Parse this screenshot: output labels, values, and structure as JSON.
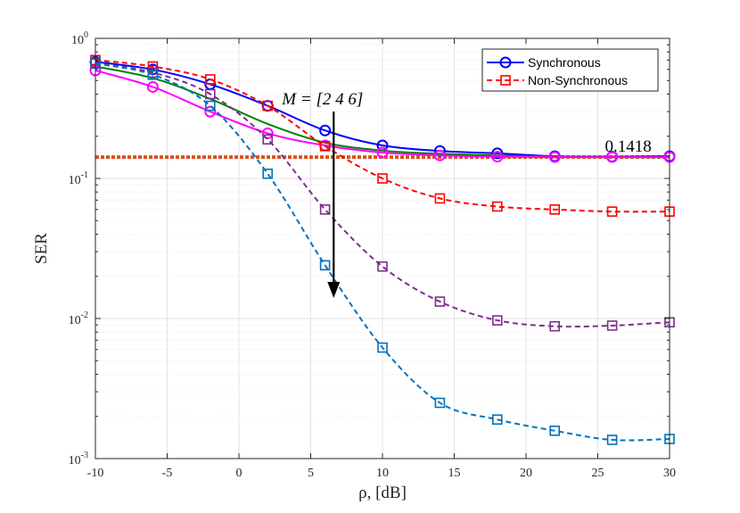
{
  "chart_data": {
    "type": "line",
    "title": "",
    "xlabel": "ρ, [dB]",
    "ylabel": "SER",
    "xlim": [
      -10,
      30
    ],
    "ylim": [
      0.001,
      1
    ],
    "yscale": "log",
    "grid": true,
    "xticks": [
      -10,
      -5,
      0,
      5,
      10,
      15,
      20,
      25,
      30
    ],
    "xtick_labels": [
      "-10",
      "-5",
      "0",
      "5",
      "10",
      "15",
      "20",
      "25",
      "30"
    ],
    "yticks": [
      {
        "value": 1,
        "base": "10",
        "exp": "0"
      },
      {
        "value": 0.1,
        "base": "10",
        "exp": "-1"
      },
      {
        "value": 0.01,
        "base": "10",
        "exp": "-2"
      },
      {
        "value": 0.001,
        "base": "10",
        "exp": "-3"
      }
    ],
    "legend": {
      "position": "top-right",
      "entries": [
        {
          "label": "Synchronous",
          "color": "#0000ff",
          "style": "solid",
          "marker": "circle"
        },
        {
          "label": "Non-Synchronous",
          "color": "#ff0000",
          "style": "dashed",
          "marker": "square"
        }
      ]
    },
    "annotations": {
      "m_label": "M = [2 4 6]",
      "ref_label": "0.1418",
      "ref_value": 0.1418,
      "ref_color": "#d95319"
    },
    "series": [
      {
        "name": "Synchronous M=2",
        "color": "#0000ff",
        "style": "solid",
        "marker": "circle",
        "x": [
          -10,
          -6,
          -2,
          2,
          6,
          10,
          14,
          18,
          22,
          26,
          30
        ],
        "y": [
          0.68,
          0.6,
          0.47,
          0.33,
          0.22,
          0.172,
          0.157,
          0.151,
          0.144,
          0.143,
          0.144
        ]
      },
      {
        "name": "Synchronous M=4",
        "color": "#008000",
        "style": "solid",
        "marker": "none",
        "x": [
          -10,
          -6,
          -2,
          2,
          6,
          10,
          14,
          18,
          22,
          26,
          30
        ],
        "y": [
          0.63,
          0.52,
          0.37,
          0.245,
          0.18,
          0.158,
          0.15,
          0.146,
          0.143,
          0.142,
          0.142
        ]
      },
      {
        "name": "Synchronous M=6",
        "color": "#ff00ff",
        "style": "solid",
        "marker": "circle",
        "x": [
          -10,
          -6,
          -2,
          2,
          6,
          10,
          14,
          18,
          22,
          26,
          30
        ],
        "y": [
          0.59,
          0.45,
          0.3,
          0.21,
          0.172,
          0.153,
          0.146,
          0.143,
          0.142,
          0.142,
          0.142
        ]
      },
      {
        "name": "Non-Synchronous M=2",
        "color": "#ff0000",
        "style": "dashed",
        "marker": "square",
        "x": [
          -10,
          -6,
          -2,
          2,
          6,
          10,
          14,
          18,
          22,
          26,
          30
        ],
        "y": [
          0.7,
          0.63,
          0.51,
          0.33,
          0.17,
          0.1,
          0.072,
          0.063,
          0.06,
          0.058,
          0.058
        ]
      },
      {
        "name": "Non-Synchronous M=4",
        "color": "#7e2f8e",
        "style": "dashed",
        "marker": "square",
        "x": [
          -10,
          -6,
          -2,
          2,
          6,
          10,
          14,
          18,
          22,
          26,
          30
        ],
        "y": [
          0.67,
          0.57,
          0.4,
          0.19,
          0.06,
          0.0235,
          0.0132,
          0.0097,
          0.0088,
          0.0089,
          0.0094
        ]
      },
      {
        "name": "Non-Synchronous M=6",
        "color": "#0072bd",
        "style": "dashed",
        "marker": "square",
        "x": [
          -10,
          -6,
          -2,
          2,
          6,
          10,
          14,
          18,
          22,
          26,
          30
        ],
        "y": [
          0.66,
          0.55,
          0.33,
          0.108,
          0.024,
          0.0062,
          0.0025,
          0.0019,
          0.00158,
          0.00136,
          0.00138
        ]
      }
    ]
  }
}
